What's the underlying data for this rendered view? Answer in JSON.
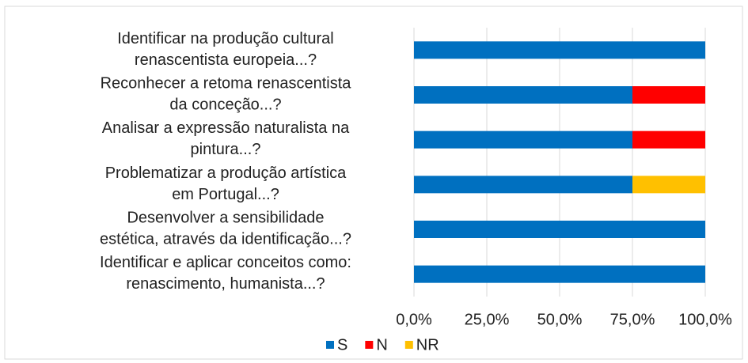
{
  "chart_data": {
    "type": "bar",
    "orientation": "horizontal",
    "stacked": true,
    "categories": [
      "Identificar na produção cultural\nrenascentista europeia...?",
      "Reconhecer a retoma renascentista\nda conceção...?",
      "Analisar a expressão naturalista na\npintura...?",
      "Problematizar a produção artística\nem Portugal...?",
      "Desenvolver a sensibilidade\nestética, através da identificação...?",
      "Identificar e aplicar conceitos como:\nrenascimento, humanista...?"
    ],
    "series": [
      {
        "name": "S",
        "color": "#0070c0",
        "values": [
          100,
          75,
          75,
          75,
          100,
          100
        ]
      },
      {
        "name": "N",
        "color": "#ff0000",
        "values": [
          0,
          25,
          25,
          0,
          0,
          0
        ]
      },
      {
        "name": "NR",
        "color": "#ffc000",
        "values": [
          0,
          0,
          0,
          25,
          0,
          0
        ]
      }
    ],
    "xlim": [
      0,
      100
    ],
    "xticks": [
      {
        "value": 0,
        "label": "0,0%"
      },
      {
        "value": 25,
        "label": "25,0%"
      },
      {
        "value": 50,
        "label": "50,0%"
      },
      {
        "value": 75,
        "label": "75,0%"
      },
      {
        "value": 100,
        "label": "100,0%"
      }
    ],
    "grid": true,
    "legend": "bottom"
  }
}
